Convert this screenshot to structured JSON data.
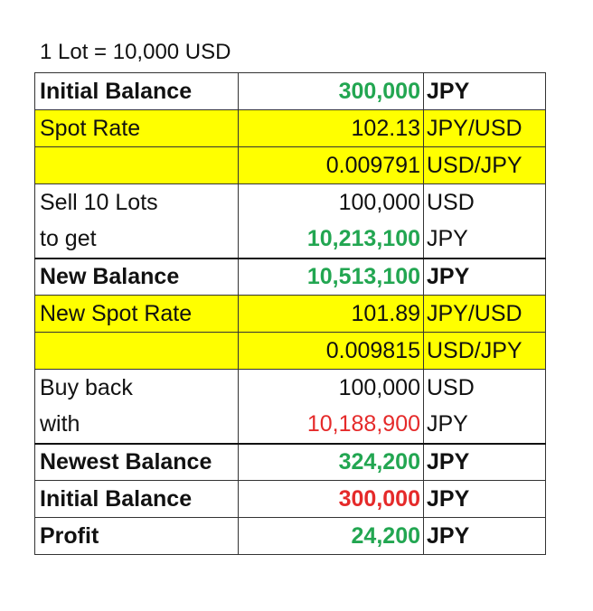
{
  "title": "1 Lot = 10,000 USD",
  "colors": {
    "green": "#22a651",
    "red": "#e52a2a",
    "highlight": "#ffff00"
  },
  "rows": [
    {
      "label": "Initial Balance",
      "value": "300,000",
      "unit": "JPY"
    },
    {
      "label": "Spot Rate",
      "value": "102.13",
      "unit": "JPY/USD"
    },
    {
      "label": "",
      "value": "0.009791",
      "unit": "USD/JPY"
    },
    {
      "label": "Sell 10 Lots",
      "value": "100,000",
      "unit": "USD"
    },
    {
      "label": "to get",
      "value": "10,213,100",
      "unit": "JPY"
    },
    {
      "label": "New Balance",
      "value": "10,513,100",
      "unit": "JPY"
    },
    {
      "label": "New Spot Rate",
      "value": "101.89",
      "unit": "JPY/USD"
    },
    {
      "label": "",
      "value": "0.009815",
      "unit": "USD/JPY"
    },
    {
      "label": "Buy back",
      "value": "100,000",
      "unit": "USD"
    },
    {
      "label": "with",
      "value": "10,188,900",
      "unit": "JPY"
    },
    {
      "label": "Newest Balance",
      "value": "324,200",
      "unit": "JPY"
    },
    {
      "label": "Initial Balance",
      "value": "300,000",
      "unit": "JPY"
    },
    {
      "label": "Profit",
      "value": "24,200",
      "unit": "JPY"
    }
  ]
}
